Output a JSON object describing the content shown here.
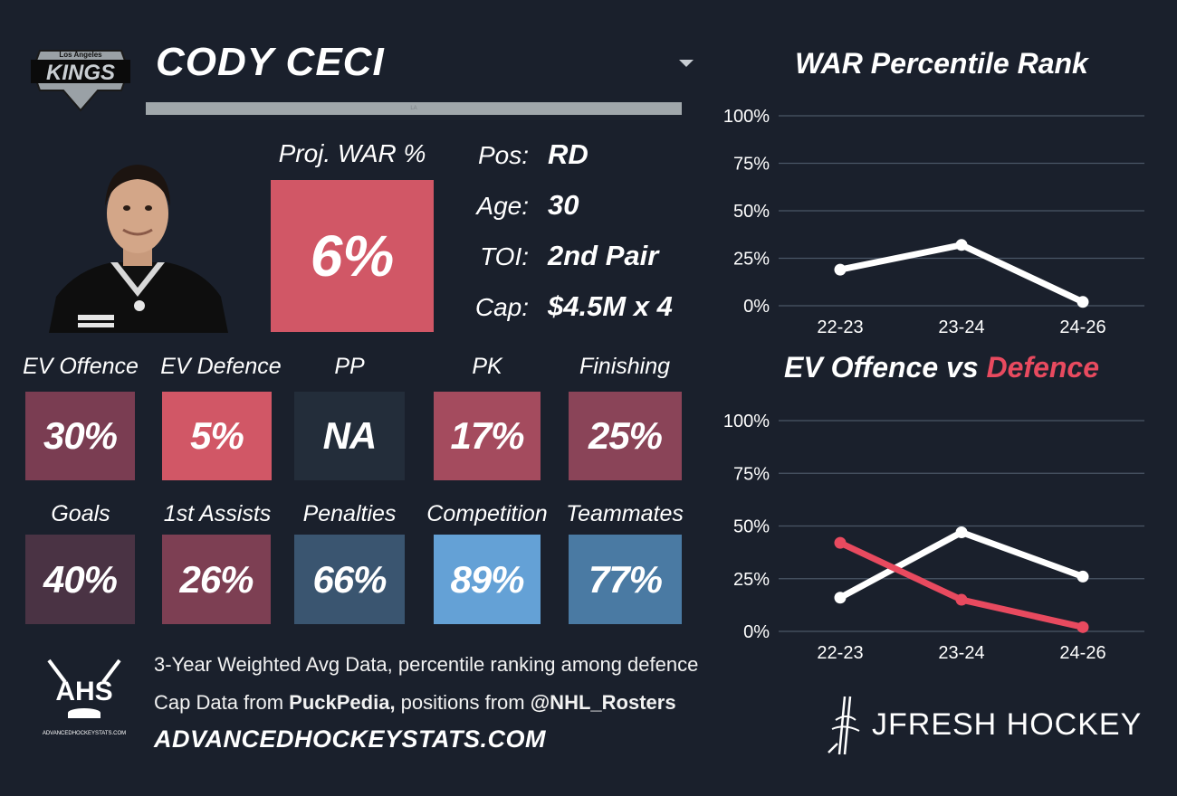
{
  "header": {
    "team_logo_text": "Los Angeles KINGS",
    "player_name": "CODY CECI",
    "underline_text": "LA"
  },
  "projection": {
    "label": "Proj. WAR %",
    "value": "6%",
    "color": "#d15766"
  },
  "info": [
    {
      "key": "Pos:",
      "value": "RD"
    },
    {
      "key": "Age:",
      "value": "30"
    },
    {
      "key": "TOI:",
      "value": "2nd Pair"
    },
    {
      "key": "Cap:",
      "value": "$4.5M x 4"
    }
  ],
  "tiles_row1": [
    {
      "label": "EV Offence",
      "value": "30%",
      "color": "#7a3d52"
    },
    {
      "label": "EV Defence",
      "value": "5%",
      "color": "#d15766"
    },
    {
      "label": "PP",
      "value": "NA",
      "color": "#232d3a"
    },
    {
      "label": "PK",
      "value": "17%",
      "color": "#a44b5e"
    },
    {
      "label": "Finishing",
      "value": "25%",
      "color": "#8a4458"
    }
  ],
  "tiles_row2": [
    {
      "label": "Goals",
      "value": "40%",
      "color": "#4a3344"
    },
    {
      "label": "1st Assists",
      "value": "26%",
      "color": "#7d3f53"
    },
    {
      "label": "Penalties",
      "value": "66%",
      "color": "#3a5570"
    },
    {
      "label": "Competition",
      "value": "89%",
      "color": "#64a1d6"
    },
    {
      "label": "Teammates",
      "value": "77%",
      "color": "#4a7aa3"
    }
  ],
  "footer": {
    "line1": "3-Year Weighted Avg Data, percentile ranking among defence",
    "line2_pre": "Cap Data from ",
    "line2_b1": "PuckPedia,",
    "line2_mid": " positions from ",
    "line2_b2": "@NHL_Rosters",
    "url": "ADVANCEDHOCKEYSTATS.COM",
    "ahs_logo_text": "AHS",
    "ahs_logo_sub": "ADVANCEDHOCKEYSTATS.COM",
    "brand": "JFRESH HOCKEY"
  },
  "chart_data": [
    {
      "type": "line",
      "title": "WAR Percentile Rank",
      "categories": [
        "22-23",
        "23-24",
        "24-26"
      ],
      "series": [
        {
          "values": [
            19,
            32,
            2
          ],
          "color": "#ffffff"
        }
      ],
      "ylim": [
        0,
        100
      ],
      "yticks": [
        "0%",
        "25%",
        "50%",
        "75%",
        "100%"
      ],
      "grid": true
    },
    {
      "type": "line",
      "title_parts": [
        "EV Offence vs ",
        "Defence"
      ],
      "title_colors": [
        "#ffffff",
        "#e84a5f"
      ],
      "categories": [
        "22-23",
        "23-24",
        "24-26"
      ],
      "series": [
        {
          "values": [
            16,
            47,
            26
          ],
          "color": "#ffffff"
        },
        {
          "values": [
            42,
            15,
            2
          ],
          "color": "#e84a5f"
        }
      ],
      "ylim": [
        0,
        100
      ],
      "yticks": [
        "0%",
        "25%",
        "50%",
        "75%",
        "100%"
      ],
      "grid": true
    }
  ]
}
